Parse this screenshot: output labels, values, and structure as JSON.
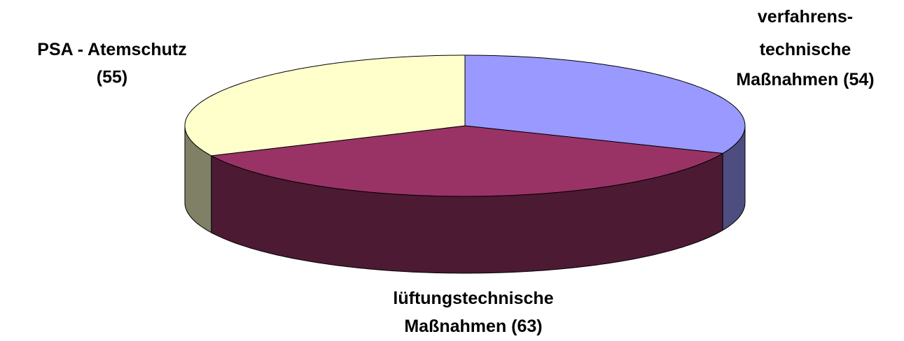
{
  "chart_data": {
    "type": "pie3d",
    "categories": [
      [
        "verfahrens-",
        "technische",
        "Maßnahmen"
      ],
      [
        "lüftungstechnische",
        "Maßnahmen"
      ],
      [
        "PSA - Atemschutz"
      ]
    ],
    "values": [
      54,
      63,
      55
    ],
    "value_labels": [
      "(54)",
      "(63)",
      "(55)"
    ],
    "colors": [
      "#9999ff",
      "#993366",
      "#ffffcc"
    ],
    "side_colors": [
      "#4d4d80",
      "#4d1a33",
      "#808066"
    ]
  }
}
